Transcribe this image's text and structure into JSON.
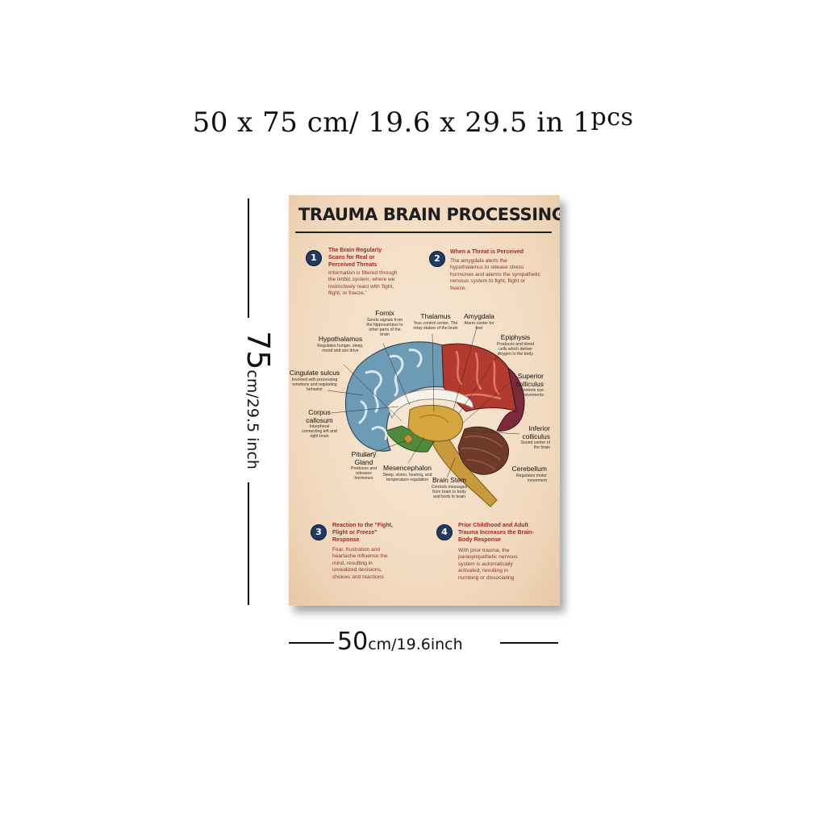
{
  "heading": {
    "size_text": "50 x 75 cm/ 19.6  x  29.5 in ",
    "qty_number": "1",
    "qty_unit": "pcs"
  },
  "dimension_vertical": {
    "value": "75",
    "unit": "cm/29.5 inch"
  },
  "dimension_horizontal": {
    "value": "50",
    "unit": "cm/19.6inch"
  },
  "poster": {
    "title": "TRAUMA BRAIN PROCESSING",
    "steps": [
      {
        "number": "1",
        "title": "The Brain Regularly Scans for Real or Perceived Threats",
        "body": "Information is filtered through the limbic system, where we instinctively react with 'fight, flight, or freeze.'"
      },
      {
        "number": "2",
        "title": "When a Threat is Perceived",
        "body": "The amygdala alerts the hypothalamus to release stress hormones and alarms the sympathetic nervous system to fight, flight or freeze."
      },
      {
        "number": "3",
        "title": "Reaction to the \"Fight, Flight or Freeze\" Response",
        "body": "Fear, frustration and heartache influence the mind, resulting in unrealized decisions, choices and reactions"
      },
      {
        "number": "4",
        "title": "Prior Childhood and Adult Trauma Increases the Brain-Body Response",
        "body": "With prior trauma, the parasympathetic nervous system is automatically activated, resulting in numbing or dissociating"
      }
    ],
    "labels": {
      "fornix": {
        "name": "Fornix",
        "desc": "Sends signals from the hippocampus to other parts of the brain"
      },
      "thalamus": {
        "name": "Thalamus",
        "desc": "Your control center. The relay station of the brain"
      },
      "amygdala": {
        "name": "Amygdala",
        "desc": "Alarm center for fear"
      },
      "hypothalamus": {
        "name": "Hypothalamus",
        "desc": "Regulates hunger, sleep, mood and sex drive"
      },
      "epiphysis": {
        "name": "Epiphysis",
        "desc": "Produces and bleed cells which deliver oxygen to the body"
      },
      "cingulate": {
        "name": "Cingulate sulcus",
        "desc": "Involved with processing emotions and regulating behavior"
      },
      "superior": {
        "name": "Superior colliculus",
        "desc": "Controls eye movements"
      },
      "corpus": {
        "name": "Corpus callosum",
        "desc": "Interpheral connecting left and right brain"
      },
      "inferior": {
        "name": "Inferior colliculus",
        "desc": "Sound center of the brain"
      },
      "pituitary": {
        "name": "Pituitary Gland",
        "desc": "Produces and releases hormones"
      },
      "mesencephalon": {
        "name": "Mesencephalon",
        "desc": "Sleep, vision, hearing, and temperature regulation"
      },
      "cerebellum": {
        "name": "Cerebellum",
        "desc": "Regulates motor movement"
      },
      "brainstem": {
        "name": "Brain Stem",
        "desc": "Controls messages from brain to body and body to brain"
      }
    }
  },
  "colors": {
    "step_badge": "#213a63",
    "step_title": "#a3282a",
    "poster_background": "#f1d8bd"
  }
}
